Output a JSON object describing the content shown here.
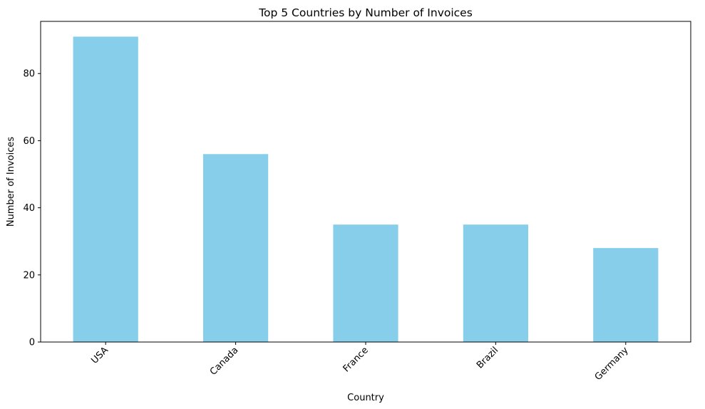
{
  "chart_data": {
    "type": "bar",
    "title": "Top 5 Countries by Number of Invoices",
    "xlabel": "Country",
    "ylabel": "Number of Invoices",
    "categories": [
      "USA",
      "Canada",
      "France",
      "Brazil",
      "Germany"
    ],
    "values": [
      91,
      56,
      35,
      35,
      28
    ],
    "ylim": [
      0,
      95.55
    ],
    "yticks": [
      0,
      20,
      40,
      60,
      80
    ],
    "grid": false,
    "legend": "none",
    "xtick_rotation": 45,
    "colors": {
      "bar": "#87ceeb",
      "axis": "#000000"
    }
  }
}
